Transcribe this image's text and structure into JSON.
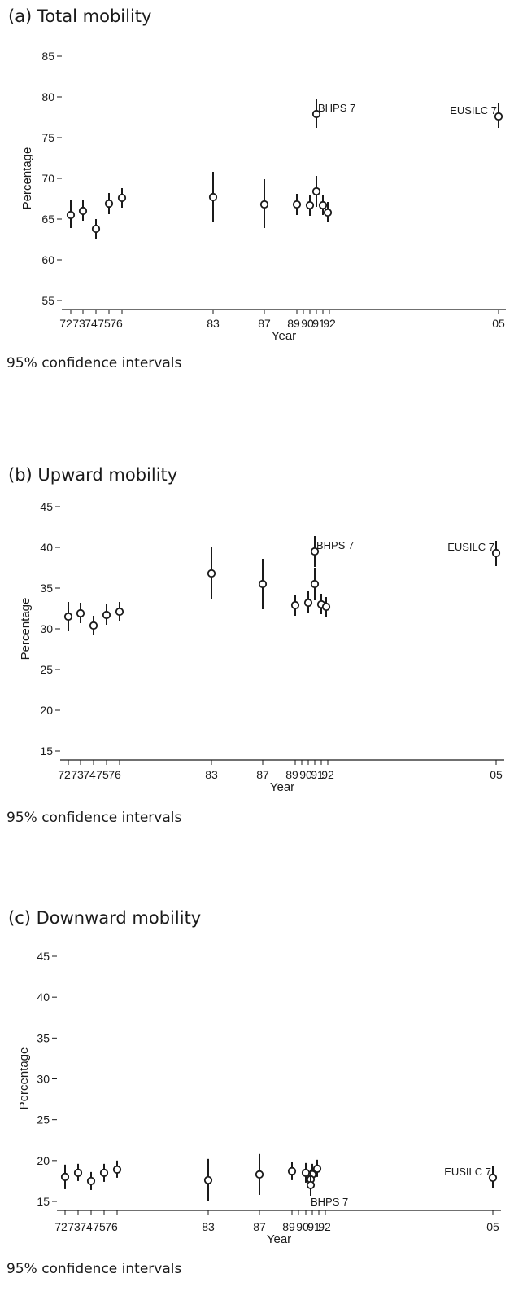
{
  "colors": {
    "ink": "#1a1a1a",
    "background": "#ffffff"
  },
  "chart_data": [
    {
      "type": "scatter",
      "title": "(a) Total mobility",
      "note": "95%  confidence  intervals",
      "xlabel": "Year",
      "ylabel": "Percentage",
      "ylim": [
        55,
        85
      ],
      "yticks": [
        55,
        60,
        65,
        70,
        75,
        80,
        85
      ],
      "xticks": [
        "72",
        "73",
        "74",
        "75",
        "76",
        "83",
        "87",
        "89",
        "90",
        "91",
        "92",
        "05"
      ],
      "error_bars": "95% confidence intervals",
      "points": [
        {
          "x": "72",
          "y": 65.5,
          "lo": 63.9,
          "hi": 67.3
        },
        {
          "x": "73",
          "y": 66.0,
          "lo": 64.8,
          "hi": 67.3
        },
        {
          "x": "74",
          "y": 63.8,
          "lo": 62.6,
          "hi": 65.0
        },
        {
          "x": "75",
          "y": 66.9,
          "lo": 65.6,
          "hi": 68.2
        },
        {
          "x": "76",
          "y": 67.6,
          "lo": 66.4,
          "hi": 68.8
        },
        {
          "x": "83",
          "y": 67.7,
          "lo": 64.7,
          "hi": 70.8
        },
        {
          "x": "87",
          "y": 66.8,
          "lo": 63.9,
          "hi": 69.9
        },
        {
          "x": "89",
          "y": 66.8,
          "lo": 65.5,
          "hi": 68.1
        },
        {
          "x": "90",
          "y": 66.7,
          "lo": 65.4,
          "hi": 68.0
        },
        {
          "x": "91",
          "y": 68.4,
          "lo": 66.5,
          "hi": 70.3
        },
        {
          "x": "92",
          "y": 66.7,
          "lo": 65.5,
          "hi": 67.9
        },
        {
          "x": "92",
          "y": 65.8,
          "lo": 64.6,
          "hi": 67.1,
          "offset": 1
        },
        {
          "x": "91",
          "y": 77.9,
          "lo": 76.2,
          "hi": 79.8,
          "label": "BHPS 7",
          "label_side": "right"
        },
        {
          "x": "05",
          "y": 77.6,
          "lo": 76.2,
          "hi": 79.2,
          "label": "EUSILC 7",
          "label_side": "left"
        }
      ]
    },
    {
      "type": "scatter",
      "title": "(b) Upward mobility",
      "note": "95%  confidence  intervals",
      "xlabel": "Year",
      "ylabel": "Percentage",
      "ylim": [
        15,
        45
      ],
      "yticks": [
        15,
        20,
        25,
        30,
        35,
        40,
        45
      ],
      "xticks": [
        "72",
        "73",
        "74",
        "75",
        "76",
        "83",
        "87",
        "89",
        "90",
        "91",
        "92",
        "05"
      ],
      "error_bars": "95% confidence intervals",
      "points": [
        {
          "x": "72",
          "y": 31.5,
          "lo": 29.7,
          "hi": 33.3
        },
        {
          "x": "73",
          "y": 31.9,
          "lo": 30.7,
          "hi": 33.2
        },
        {
          "x": "74",
          "y": 30.4,
          "lo": 29.3,
          "hi": 31.6
        },
        {
          "x": "75",
          "y": 31.7,
          "lo": 30.5,
          "hi": 33.0
        },
        {
          "x": "76",
          "y": 32.1,
          "lo": 31.0,
          "hi": 33.3
        },
        {
          "x": "83",
          "y": 36.8,
          "lo": 33.7,
          "hi": 40.0
        },
        {
          "x": "87",
          "y": 35.5,
          "lo": 32.4,
          "hi": 38.6
        },
        {
          "x": "89",
          "y": 32.9,
          "lo": 31.6,
          "hi": 34.2
        },
        {
          "x": "90",
          "y": 33.2,
          "lo": 31.9,
          "hi": 34.6
        },
        {
          "x": "91",
          "y": 35.5,
          "lo": 33.5,
          "hi": 37.5
        },
        {
          "x": "92",
          "y": 33.0,
          "lo": 31.8,
          "hi": 34.3
        },
        {
          "x": "92",
          "y": 32.7,
          "lo": 31.5,
          "hi": 33.9,
          "offset": 1
        },
        {
          "x": "91",
          "y": 39.5,
          "lo": 37.6,
          "hi": 41.4,
          "label": "BHPS 7",
          "label_side": "right"
        },
        {
          "x": "05",
          "y": 39.3,
          "lo": 37.7,
          "hi": 40.8,
          "label": "EUSILC 7",
          "label_side": "left"
        }
      ]
    },
    {
      "type": "scatter",
      "title": "(c) Downward mobility",
      "note": "95%  confidence  intervals",
      "xlabel": "Year",
      "ylabel": "Percentage",
      "ylim": [
        15,
        45
      ],
      "yticks": [
        15,
        20,
        25,
        30,
        35,
        40,
        45
      ],
      "xticks": [
        "72",
        "73",
        "74",
        "75",
        "76",
        "83",
        "87",
        "89",
        "90",
        "91",
        "92",
        "05"
      ],
      "error_bars": "95% confidence intervals",
      "points": [
        {
          "x": "72",
          "y": 18.0,
          "lo": 16.5,
          "hi": 19.5
        },
        {
          "x": "73",
          "y": 18.5,
          "lo": 17.5,
          "hi": 19.6
        },
        {
          "x": "74",
          "y": 17.5,
          "lo": 16.4,
          "hi": 18.6
        },
        {
          "x": "75",
          "y": 18.5,
          "lo": 17.4,
          "hi": 19.6
        },
        {
          "x": "76",
          "y": 18.9,
          "lo": 17.9,
          "hi": 20.0
        },
        {
          "x": "83",
          "y": 17.6,
          "lo": 15.1,
          "hi": 20.2
        },
        {
          "x": "87",
          "y": 18.3,
          "lo": 15.8,
          "hi": 20.8
        },
        {
          "x": "89",
          "y": 18.7,
          "lo": 17.6,
          "hi": 19.8
        },
        {
          "x": "90",
          "y": 18.5,
          "lo": 17.3,
          "hi": 19.7
        },
        {
          "x": "91",
          "y": 18.3,
          "lo": 16.8,
          "hi": 19.6
        },
        {
          "x": "92",
          "y": 19.0,
          "lo": 18.0,
          "hi": 20.1
        },
        {
          "x": "90",
          "y": 17.7,
          "lo": 16.5,
          "hi": 18.9,
          "offset": 1
        },
        {
          "x": "90",
          "y": 17.0,
          "lo": 15.7,
          "hi": 18.4,
          "offset": 1,
          "label": "BHPS 7",
          "label_side": "below"
        },
        {
          "x": "05",
          "y": 17.9,
          "lo": 16.6,
          "hi": 19.3,
          "label": "EUSILC 7",
          "label_side": "left"
        }
      ]
    }
  ]
}
